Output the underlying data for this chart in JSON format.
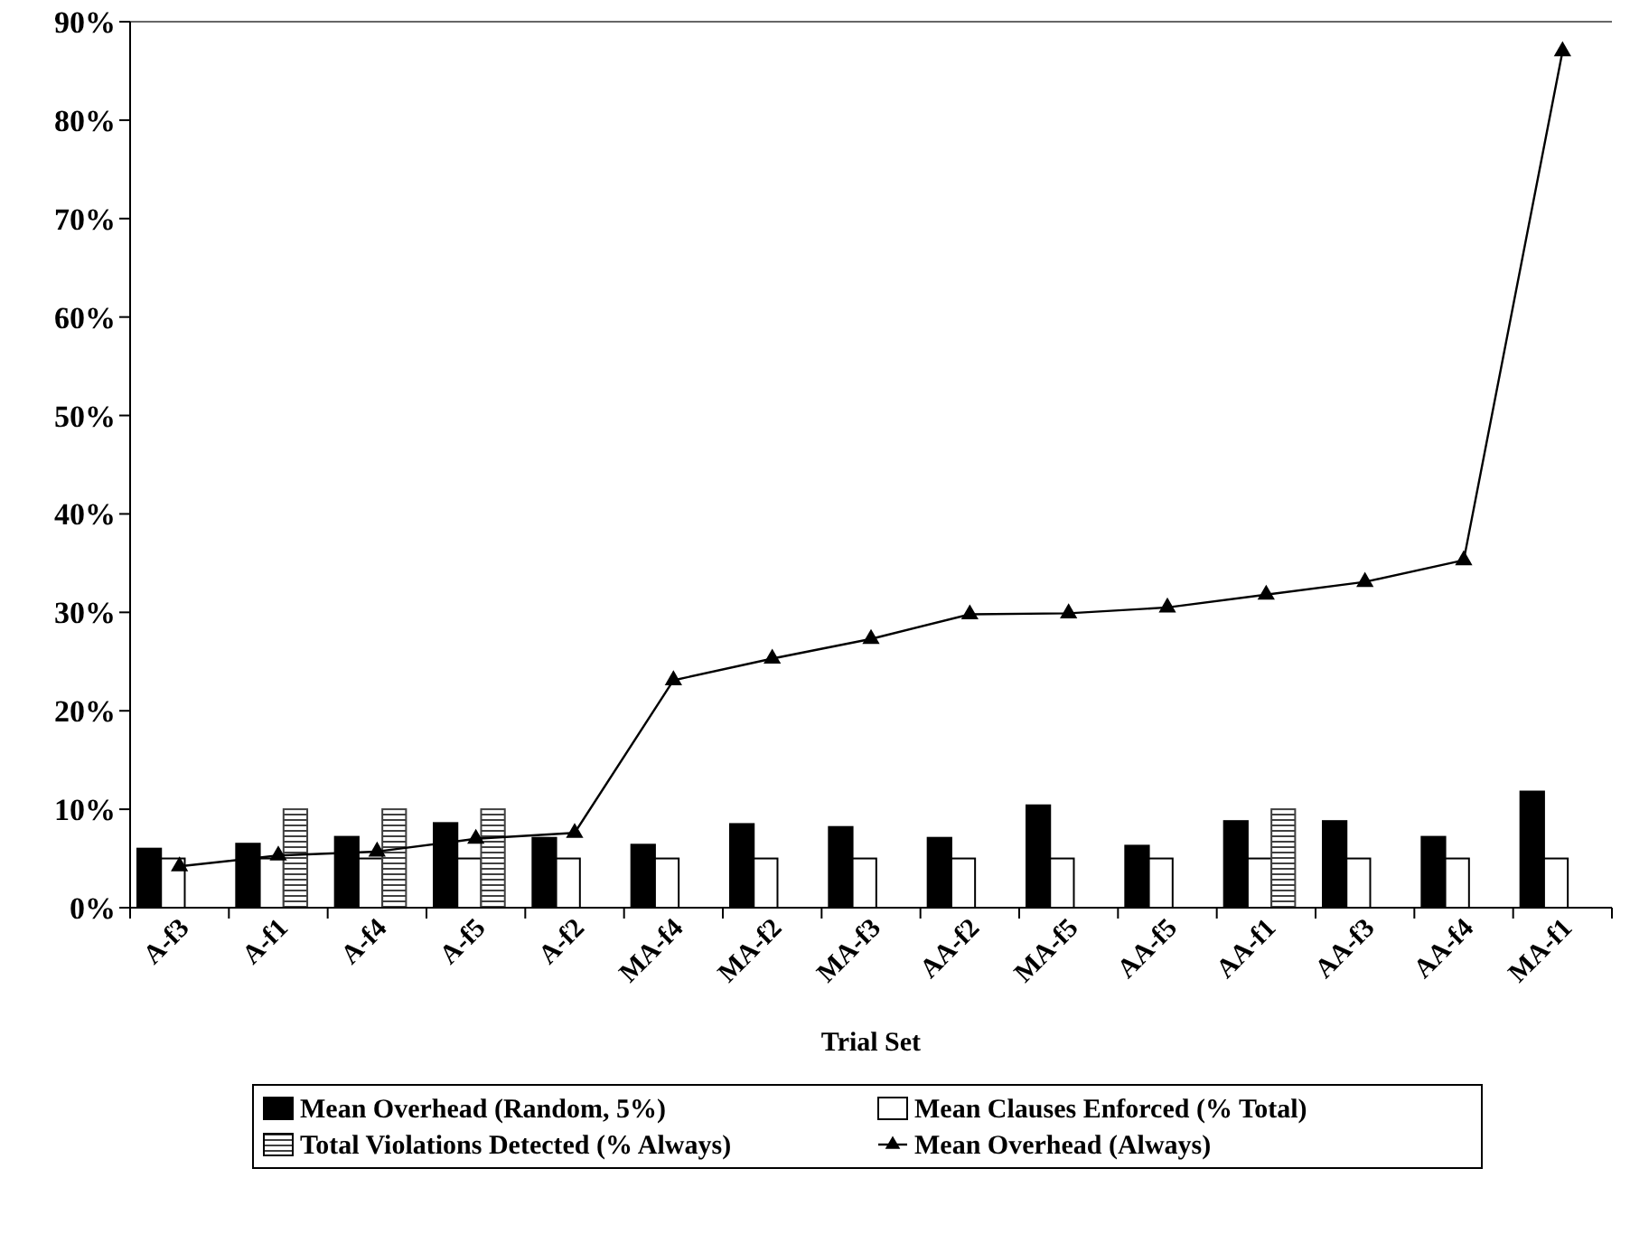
{
  "chart_data": {
    "type": "bar",
    "xlabel": "Trial Set",
    "categories": [
      "A-f3",
      "A-f1",
      "A-f4",
      "A-f5",
      "A-f2",
      "MA-f4",
      "MA-f2",
      "MA-f3",
      "AA-f2",
      "MA-f5",
      "AA-f5",
      "AA-f1",
      "AA-f3",
      "AA-f4",
      "MA-f1"
    ],
    "series": [
      {
        "name": "Mean Overhead (Random, 5%)",
        "color": "#000000",
        "values": [
          6.0,
          6.5,
          7.2,
          8.6,
          7.1,
          6.4,
          8.5,
          8.2,
          7.1,
          10.4,
          6.3,
          8.8,
          8.8,
          7.2,
          11.8
        ]
      },
      {
        "name": "Mean Clauses Enforced (% Total)",
        "color": "#ffffff",
        "values": [
          5,
          5,
          5,
          5,
          5,
          5,
          5,
          5,
          5,
          5,
          5,
          5,
          5,
          5,
          5
        ]
      },
      {
        "name": "Total Violations Detected (% Always)",
        "color": "#404040",
        "values": [
          null,
          10,
          10,
          10,
          null,
          null,
          null,
          null,
          null,
          null,
          null,
          10,
          null,
          null,
          null
        ]
      },
      {
        "name": "Mean Overhead (Always)",
        "type": "line",
        "color": "#000000",
        "marker": "triangle",
        "values": [
          4.2,
          5.3,
          5.7,
          7.0,
          7.6,
          23.1,
          25.3,
          27.3,
          29.8,
          29.9,
          30.5,
          31.8,
          33.1,
          35.3,
          87.0
        ]
      }
    ],
    "ylim": [
      0,
      90
    ],
    "yticks": [
      {
        "value": 0,
        "label": "0%"
      },
      {
        "value": 10,
        "label": "10%"
      },
      {
        "value": 20,
        "label": "20%"
      },
      {
        "value": 30,
        "label": "30%"
      },
      {
        "value": 40,
        "label": "40%"
      },
      {
        "value": 50,
        "label": "50%"
      },
      {
        "value": 60,
        "label": "60%"
      },
      {
        "value": 70,
        "label": "70%"
      },
      {
        "value": 80,
        "label": "80%"
      },
      {
        "value": 90,
        "label": "90%"
      }
    ],
    "grid": false,
    "legend": "bottom"
  }
}
